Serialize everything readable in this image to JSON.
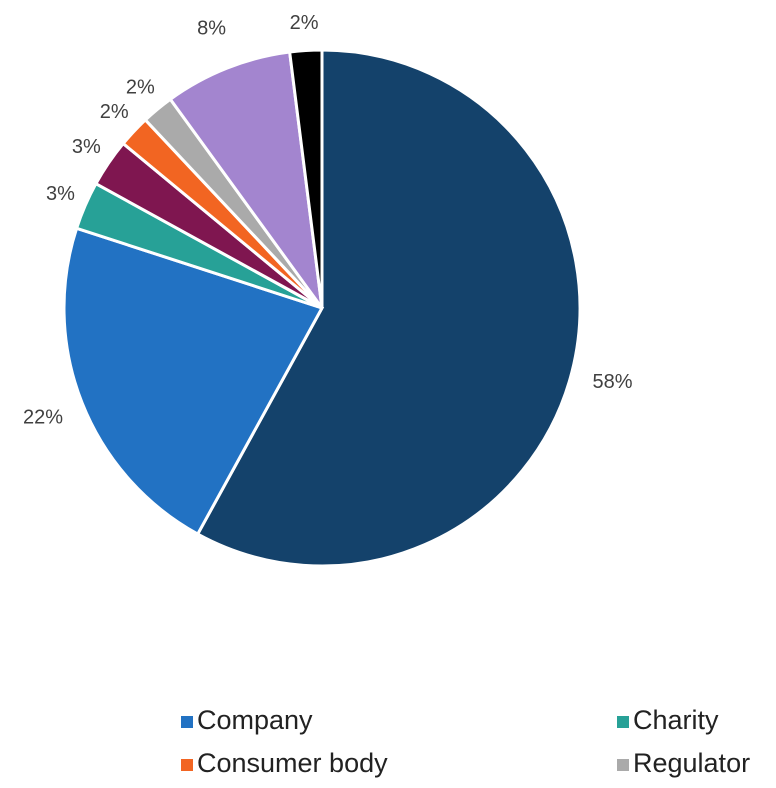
{
  "chart_data": {
    "type": "pie",
    "categories": [
      null,
      "Company",
      "Charity",
      null,
      "Consumer body",
      "Regulator",
      null,
      null
    ],
    "values": [
      58,
      22,
      3,
      3,
      2,
      2,
      8,
      2
    ],
    "value_labels": [
      "58%",
      "22%",
      "3%",
      "3%",
      "2%",
      "2%",
      "8%",
      "2%"
    ],
    "colors": [
      "#14426b",
      "#2272c3",
      "#27a197",
      "#7f1650",
      "#f26522",
      "#aaaaaa",
      "#a385cf",
      "#000000"
    ],
    "legend": "bottom"
  }
}
